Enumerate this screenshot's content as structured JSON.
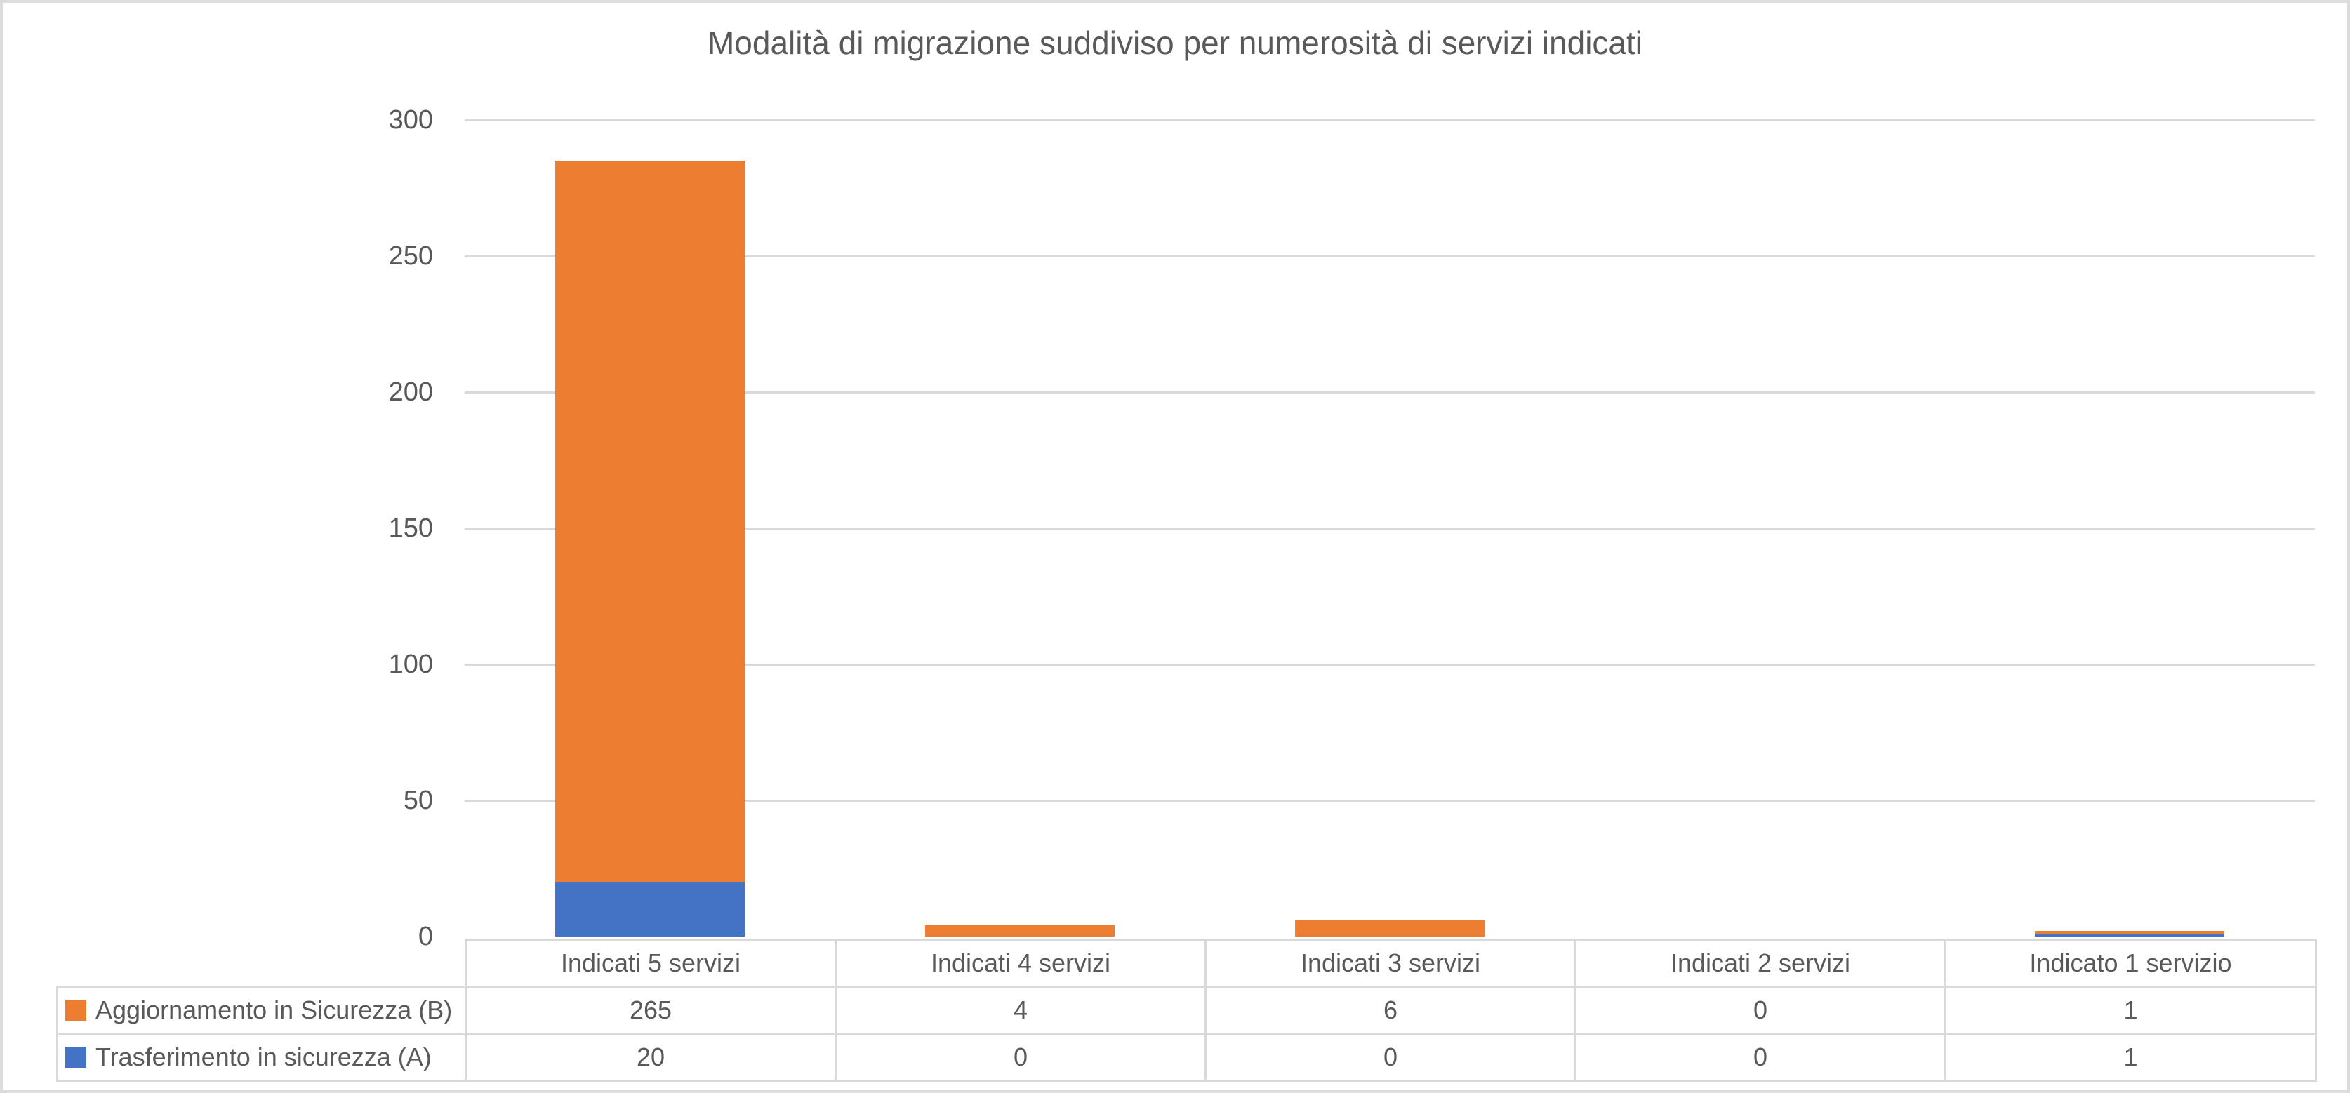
{
  "chart_data": {
    "type": "bar",
    "stacked": true,
    "title": "Modalità di migrazione suddiviso per numerosità di servizi indicati",
    "categories": [
      "Indicati 5 servizi",
      "Indicati 4 servizi",
      "Indicati 3 servizi",
      "Indicati 2 servizi",
      "Indicato 1 servizio"
    ],
    "series": [
      {
        "name": "Aggiornamento in Sicurezza (B)",
        "color": "#ED7D31",
        "values": [
          265,
          4,
          6,
          0,
          1
        ]
      },
      {
        "name": "Trasferimento in sicurezza (A)",
        "color": "#4472C4",
        "values": [
          20,
          0,
          0,
          0,
          1
        ]
      }
    ],
    "stack_order_bottom_to_top": [
      "Trasferimento in sicurezza (A)",
      "Aggiornamento in Sicurezza (B)"
    ],
    "xlabel": "",
    "ylabel": "",
    "ylim": [
      0,
      300
    ],
    "yticks": [
      0,
      50,
      100,
      150,
      200,
      250,
      300
    ],
    "grid": "horizontal",
    "legend_position": "data-table-left",
    "data_table_shown": true,
    "colors": {
      "gridline": "#D9D9D9",
      "table_border": "#D9D9D9",
      "text": "#595959",
      "background": "#FFFFFF",
      "frame_border": "#DCDCDC"
    }
  }
}
